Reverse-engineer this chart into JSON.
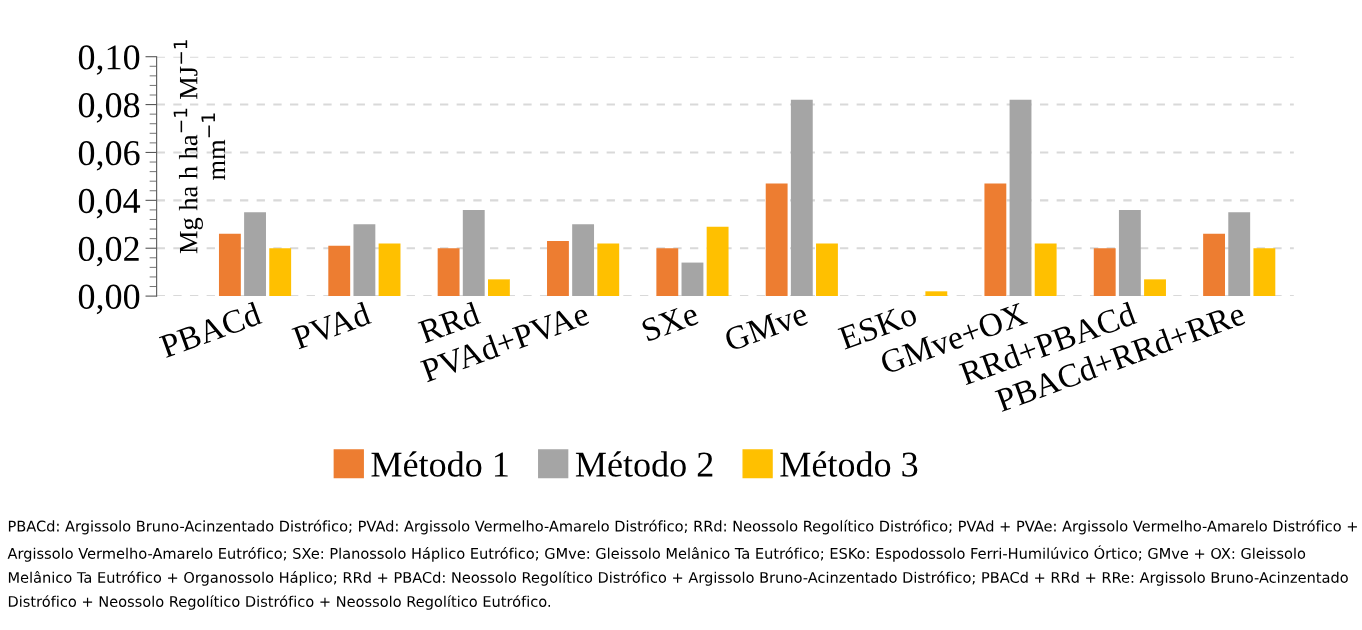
{
  "chart_data": {
    "type": "bar",
    "ylabel": "Mg ha h ha$^{−1}$ MJ$^{−1}$ mm$^{−1}$",
    "categories": [
      "PBACd",
      "PVAd",
      "RRd",
      "PVAd+PVAe",
      "SXe",
      "GMve",
      "ESKo",
      "GMve+OX",
      "RRd+PBACd",
      "PBACd+RRd+RRe"
    ],
    "series": [
      {
        "name": "Método 1",
        "color": "#ed7d31",
        "values": [
          0.026,
          0.021,
          0.02,
          0.023,
          0.02,
          0.047,
          0,
          0.047,
          0.02,
          0.026
        ]
      },
      {
        "name": "Método 2",
        "color": "#a5a5a5",
        "values": [
          0.035,
          0.03,
          0.036,
          0.03,
          0.014,
          0.082,
          0,
          0.082,
          0.036,
          0.035
        ]
      },
      {
        "name": "Método 3",
        "color": "#ffc000",
        "values": [
          0.02,
          0.022,
          0.007,
          0.022,
          0.029,
          0.022,
          0.002,
          0.022,
          0.007,
          0.02
        ]
      }
    ],
    "ylim": [
      0,
      0.1
    ],
    "yticks": [
      {
        "value": 0,
        "label": "0,00"
      },
      {
        "value": 0.02,
        "label": "0,02"
      },
      {
        "value": 0.04,
        "label": "0,04"
      },
      {
        "value": 0.06,
        "label": "0,06"
      },
      {
        "value": 0.08,
        "label": "0,08"
      },
      {
        "value": 0.1,
        "label": "0,10"
      }
    ],
    "grid": "y",
    "legend": "bottom",
    "annotations": [
      "PBACd: Argissolo Bruno-Acinzentado Distrófico; PVAd: Argissolo Vermelho-Amarelo Distrófico; RRd: Neossolo Regolítico Distrófico; PVAd + PVAe: Argissolo Vermelho-Amarelo Distrófico + Argissolo Vermelho-Amarelo Eutrófico; SXe: Planossolo Háplico Eutrófico; GMve: Gleissolo Melânico Ta Eutrófico; ESKo: Espodossolo Ferri-Humilúvico Órtico; GMve + OX: Gleissolo Melânico Ta Eutrófico + Organossolo Háplico; RRd + PBACd: Neossolo Regolítico Distrófico + Argissolo Bruno-Acinzentado Distrófico; PBACd + RRd + RRe: Argissolo Bruno-Acinzentado Distrófico + Neossolo Regolítico Distrófico + Neossolo Regolítico Eutrófico."
    ]
  }
}
